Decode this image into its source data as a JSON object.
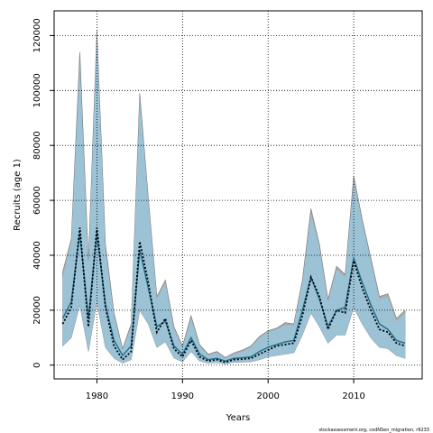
{
  "chart_data": {
    "type": "area",
    "xlabel": "Years",
    "ylabel": "Recruits (age 1)",
    "xlim": [
      1975,
      2018
    ],
    "ylim": [
      -5000,
      129000
    ],
    "xticks": [
      1980,
      1990,
      2000,
      2010
    ],
    "yticks": [
      0,
      20000,
      40000,
      60000,
      80000,
      100000,
      120000
    ],
    "xtick_labels": [
      "1980",
      "1990",
      "2000",
      "2010"
    ],
    "ytick_labels": [
      "0",
      "20000",
      "40000",
      "60000",
      "80000",
      "100000",
      "120000"
    ],
    "grid": true,
    "x": [
      1976,
      1977,
      1978,
      1979,
      1980,
      1981,
      1982,
      1983,
      1984,
      1985,
      1986,
      1987,
      1988,
      1989,
      1990,
      1991,
      1992,
      1993,
      1994,
      1995,
      1996,
      1997,
      1998,
      1999,
      2000,
      2001,
      2002,
      2003,
      2004,
      2005,
      2006,
      2007,
      2008,
      2009,
      2010,
      2011,
      2012,
      2013,
      2014,
      2015,
      2016
    ],
    "series": [
      {
        "role": "estimate",
        "values": [
          15000,
          21000,
          50000,
          14000,
          50000,
          21000,
          7000,
          2000,
          5000,
          45000,
          30000,
          12000,
          17000,
          6000,
          3000,
          9000,
          3000,
          1500,
          2000,
          1000,
          2000,
          2200,
          2500,
          4000,
          5500,
          7000,
          7500,
          8000,
          18000,
          32000,
          25000,
          13000,
          20000,
          19000,
          38000,
          28000,
          20000,
          13000,
          12000,
          8000,
          7000
        ]
      },
      {
        "role": "reference",
        "values": [
          17000,
          23000,
          48000,
          17000,
          48000,
          22000,
          9000,
          3500,
          7000,
          42000,
          28000,
          14000,
          16000,
          7000,
          4000,
          10000,
          4000,
          2000,
          2500,
          1500,
          2500,
          2700,
          3000,
          5000,
          6500,
          7500,
          8500,
          9000,
          20000,
          32000,
          24000,
          14000,
          20000,
          21000,
          39000,
          30000,
          22000,
          15000,
          13000,
          9000,
          8000
        ]
      },
      {
        "role": "lower",
        "values": [
          7000,
          10000,
          22000,
          5000,
          23000,
          6500,
          2500,
          700,
          2000,
          20000,
          15000,
          6500,
          8500,
          2700,
          1200,
          5000,
          1500,
          700,
          900,
          500,
          1000,
          1100,
          1200,
          2000,
          3000,
          3500,
          4000,
          4500,
          11000,
          19000,
          14000,
          8000,
          11000,
          11000,
          21000,
          15000,
          10000,
          6500,
          6000,
          3500,
          2500
        ]
      },
      {
        "role": "upper",
        "values": [
          32000,
          45000,
          110000,
          36000,
          120000,
          42000,
          18000,
          5500,
          14000,
          97000,
          60000,
          24000,
          30000,
          13000,
          6500,
          17000,
          7000,
          3500,
          4500,
          2500,
          4000,
          5000,
          6500,
          10000,
          12000,
          13000,
          14500,
          14500,
          30000,
          55000,
          43000,
          23000,
          35000,
          32000,
          67000,
          52000,
          38000,
          24000,
          25000,
          16000,
          19000
        ]
      },
      {
        "role": "upper-alt",
        "values": [
          34000,
          46000,
          114000,
          38000,
          122000,
          44000,
          19000,
          6000,
          15000,
          99000,
          61000,
          25000,
          31000,
          14000,
          7000,
          18000,
          7500,
          4000,
          5000,
          2800,
          4500,
          5500,
          7000,
          10500,
          12500,
          13500,
          15500,
          15000,
          31000,
          57000,
          44000,
          24000,
          36000,
          33000,
          69000,
          53000,
          39000,
          25000,
          26000,
          17000,
          20000
        ]
      }
    ],
    "colors": {
      "ci_band": "#9cc2d6",
      "ci_band_alt": "#aaaaaa",
      "ci_edge": "#777777",
      "estimate_line": "#000000",
      "reference_line": "#1f6f8b",
      "grid": "#000000",
      "frame": "#000000"
    }
  },
  "footnote": "stockassessment.org, codNSen_migration, r9233"
}
